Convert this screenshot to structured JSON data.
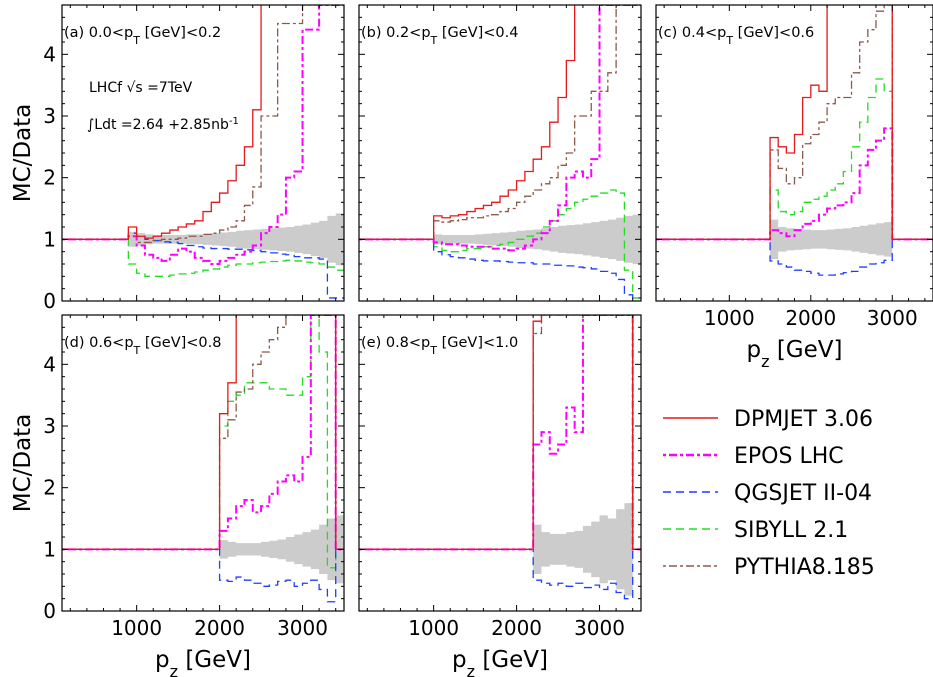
{
  "chart_data": {
    "type": "line",
    "ylabel": "MC/Data",
    "xlabel": "p_z [GeV]",
    "xlim": [
      100,
      3500
    ],
    "ylim": [
      0,
      4.8
    ],
    "yticks": [
      0,
      1,
      2,
      3,
      4
    ],
    "xticks": [
      1000,
      2000,
      3000
    ],
    "annotation": {
      "experiment": "LHCf",
      "energy_text": "√s =7TeV",
      "luminosity_text": "∫Ldt =2.64 +2.85nb",
      "luminosity_sup": "-1"
    },
    "legend": {
      "position": "lower-right",
      "entries": [
        {
          "name": "DPMJET 3.06",
          "color": "#e41a1c",
          "dash": ""
        },
        {
          "name": "EPOS LHC",
          "color": "#ff00ff",
          "dash": "3,3,8,3"
        },
        {
          "name": "QGSJET II-04",
          "color": "#1f3fff",
          "dash": "8,5"
        },
        {
          "name": "SIBYLL 2.1",
          "color": "#22dd22",
          "dash": "8,5"
        },
        {
          "name": "PYTHIA8.185",
          "color": "#8b5a4a",
          "dash": "3,3,8,3"
        }
      ]
    },
    "panels": [
      {
        "label": "(a) 0.0<p_T [GeV]<0.2",
        "pt_range": "0.0-0.2",
        "edges": [
          100,
          900,
          1000,
          1100,
          1200,
          1300,
          1400,
          1500,
          1600,
          1700,
          1800,
          1900,
          2000,
          2100,
          2200,
          2300,
          2400,
          2500,
          2600,
          2700,
          2800,
          2900,
          3000,
          3100,
          3200,
          3300,
          3400,
          3500
        ],
        "uncertainty_band": {
          "low": [
            1,
            0.88,
            0.9,
            0.92,
            0.93,
            0.93,
            0.93,
            0.93,
            0.92,
            0.92,
            0.91,
            0.9,
            0.89,
            0.88,
            0.86,
            0.85,
            0.84,
            0.83,
            0.82,
            0.81,
            0.8,
            0.78,
            0.76,
            0.73,
            0.7,
            0.62,
            0.58
          ],
          "high": [
            1,
            1.12,
            1.1,
            1.08,
            1.07,
            1.07,
            1.07,
            1.07,
            1.08,
            1.08,
            1.09,
            1.1,
            1.11,
            1.12,
            1.14,
            1.15,
            1.16,
            1.17,
            1.18,
            1.19,
            1.2,
            1.22,
            1.24,
            1.27,
            1.3,
            1.38,
            1.42
          ]
        },
        "series": {
          "DPMJET 3.06": [
            1,
            1.2,
            1.05,
            1.02,
            1.05,
            1.1,
            1.15,
            1.2,
            1.25,
            1.3,
            1.45,
            1.6,
            1.75,
            1.95,
            2.2,
            2.5,
            3.1,
            5.2,
            5.2,
            5.2,
            5.2,
            5.2,
            5.2,
            5.2,
            5.2,
            5.2,
            5.2
          ],
          "EPOS LHC": [
            1,
            1.05,
            0.9,
            0.75,
            0.7,
            0.65,
            0.75,
            0.85,
            0.8,
            0.7,
            0.65,
            0.6,
            0.65,
            0.7,
            0.75,
            0.8,
            0.9,
            1.1,
            1.2,
            1.4,
            2.0,
            2.1,
            4.4,
            4.4,
            4.8,
            4.8,
            4.8
          ],
          "QGSJET II-04": [
            1,
            1.1,
            1.05,
            1.0,
            0.98,
            0.96,
            0.95,
            0.93,
            0.9,
            0.88,
            0.86,
            0.85,
            0.85,
            0.84,
            0.84,
            0.83,
            0.82,
            0.8,
            0.78,
            0.76,
            0.75,
            0.72,
            0.7,
            0.7,
            0.68,
            0.05,
            0.05
          ],
          "SIBYLL 2.1": [
            1,
            0.6,
            0.45,
            0.4,
            0.4,
            0.4,
            0.42,
            0.44,
            0.45,
            0.47,
            0.5,
            0.52,
            0.55,
            0.58,
            0.6,
            0.6,
            0.62,
            0.63,
            0.64,
            0.65,
            0.66,
            0.65,
            0.63,
            0.62,
            0.6,
            0.55,
            0.5
          ],
          "PYTHIA8.185": [
            1,
            1.05,
            0.95,
            0.95,
            0.98,
            1.0,
            1.0,
            1.02,
            1.05,
            1.05,
            1.08,
            1.1,
            1.15,
            1.2,
            1.3,
            1.55,
            1.85,
            3.0,
            3.0,
            4.5,
            4.5,
            4.5,
            4.8,
            4.8,
            5.2,
            5.2,
            5.2
          ]
        }
      },
      {
        "label": "(b) 0.2<p_T [GeV]<0.4",
        "pt_range": "0.2-0.4",
        "edges": [
          100,
          1000,
          1100,
          1200,
          1300,
          1400,
          1500,
          1600,
          1700,
          1800,
          1900,
          2000,
          2100,
          2200,
          2300,
          2400,
          2500,
          2600,
          2700,
          2800,
          2900,
          3000,
          3100,
          3200,
          3300,
          3400,
          3500
        ],
        "uncertainty_band": {
          "low": [
            1,
            0.92,
            0.93,
            0.93,
            0.93,
            0.93,
            0.92,
            0.91,
            0.9,
            0.89,
            0.88,
            0.86,
            0.85,
            0.84,
            0.82,
            0.8,
            0.78,
            0.77,
            0.76,
            0.74,
            0.72,
            0.7,
            0.68,
            0.65,
            0.62,
            0.6
          ],
          "high": [
            1,
            1.08,
            1.07,
            1.07,
            1.07,
            1.07,
            1.08,
            1.09,
            1.1,
            1.11,
            1.12,
            1.14,
            1.15,
            1.16,
            1.18,
            1.2,
            1.22,
            1.23,
            1.24,
            1.26,
            1.28,
            1.3,
            1.32,
            1.35,
            1.38,
            1.4
          ]
        },
        "series": {
          "DPMJET 3.06": [
            1,
            1.38,
            1.35,
            1.38,
            1.4,
            1.45,
            1.5,
            1.55,
            1.6,
            1.7,
            1.8,
            1.95,
            2.1,
            2.3,
            2.5,
            2.9,
            3.3,
            3.9,
            5.2,
            5.2,
            5.2,
            5.2,
            5.2,
            5.2,
            5.2,
            5.2
          ],
          "EPOS LHC": [
            1,
            0.95,
            0.92,
            0.92,
            0.9,
            0.88,
            0.88,
            0.88,
            0.85,
            0.85,
            0.82,
            0.85,
            0.9,
            1.0,
            1.1,
            1.3,
            1.55,
            2.0,
            2.1,
            2.0,
            2.3,
            4.8,
            4.8,
            4.8,
            4.8,
            4.8
          ],
          "QGSJET II-04": [
            1,
            0.8,
            0.75,
            0.72,
            0.7,
            0.68,
            0.66,
            0.65,
            0.65,
            0.64,
            0.63,
            0.62,
            0.62,
            0.6,
            0.6,
            0.58,
            0.58,
            0.57,
            0.55,
            0.54,
            0.52,
            0.48,
            0.45,
            0.35,
            0.1,
            0.05
          ],
          "SIBYLL 2.1": [
            1,
            0.88,
            0.82,
            0.8,
            0.82,
            0.85,
            0.85,
            0.88,
            0.9,
            0.92,
            0.95,
            1.0,
            1.05,
            1.1,
            1.2,
            1.3,
            1.4,
            1.5,
            1.6,
            1.65,
            1.7,
            1.75,
            1.8,
            1.75,
            0.5,
            0.05
          ],
          "PYTHIA8.185": [
            1,
            1.3,
            1.28,
            1.3,
            1.32,
            1.35,
            1.35,
            1.38,
            1.4,
            1.45,
            1.5,
            1.6,
            1.7,
            1.8,
            1.9,
            2.0,
            2.2,
            2.4,
            3.0,
            3.0,
            3.4,
            3.4,
            3.7,
            4.8,
            4.8,
            4.8
          ]
        }
      },
      {
        "label": "(c) 0.4<p_T [GeV]<0.6",
        "pt_range": "0.4-0.6",
        "edges": [
          100,
          1500,
          1600,
          1700,
          1800,
          1900,
          2000,
          2100,
          2200,
          2300,
          2400,
          2500,
          2600,
          2700,
          2800,
          2900,
          3000,
          3500
        ],
        "uncertainty_band": {
          "low": [
            1,
            0.68,
            0.8,
            0.82,
            0.83,
            0.84,
            0.85,
            0.85,
            0.84,
            0.83,
            0.82,
            0.8,
            0.78,
            0.76,
            0.74,
            0.72,
            1
          ],
          "high": [
            1,
            1.32,
            1.2,
            1.18,
            1.17,
            1.16,
            1.15,
            1.15,
            1.16,
            1.17,
            1.18,
            1.2,
            1.22,
            1.24,
            1.26,
            1.28,
            1
          ]
        },
        "series": {
          "DPMJET 3.06": [
            1,
            2.65,
            2.5,
            2.4,
            2.7,
            3.3,
            3.5,
            3.4,
            4.9,
            4.9,
            4.9,
            4.9,
            4.9,
            4.9,
            4.9,
            4.9,
            1
          ],
          "EPOS LHC": [
            1,
            1.15,
            1.1,
            1.05,
            1.15,
            1.25,
            1.3,
            1.4,
            1.5,
            1.55,
            1.6,
            1.75,
            2.2,
            2.45,
            2.6,
            2.8,
            1
          ],
          "QGSJET II-04": [
            1,
            0.65,
            0.6,
            0.55,
            0.5,
            0.48,
            0.45,
            0.42,
            0.42,
            0.44,
            0.46,
            0.48,
            0.55,
            0.6,
            0.62,
            0.66,
            1
          ],
          "SIBYLL 2.1": [
            1,
            1.8,
            1.45,
            1.4,
            1.45,
            1.6,
            1.65,
            1.7,
            1.8,
            1.9,
            2.1,
            2.5,
            2.9,
            3.3,
            3.6,
            3.4,
            1
          ],
          "PYTHIA8.185": [
            1,
            2.45,
            2.15,
            1.9,
            2.0,
            2.55,
            2.7,
            2.9,
            3.2,
            3.3,
            3.3,
            3.7,
            4.2,
            4.4,
            4.7,
            4.8,
            1
          ]
        }
      },
      {
        "label": "(d) 0.6<p_T [GeV]<0.8",
        "pt_range": "0.6-0.8",
        "edges": [
          100,
          2000,
          2100,
          2200,
          2300,
          2400,
          2500,
          2600,
          2700,
          2800,
          2900,
          3000,
          3100,
          3200,
          3300,
          3400,
          3500
        ],
        "uncertainty_band": {
          "low": [
            1,
            0.85,
            0.88,
            0.9,
            0.9,
            0.9,
            0.88,
            0.86,
            0.84,
            0.8,
            0.76,
            0.72,
            0.68,
            0.6,
            0.5,
            0.45
          ],
          "high": [
            1,
            1.15,
            1.12,
            1.1,
            1.1,
            1.1,
            1.12,
            1.14,
            1.16,
            1.2,
            1.24,
            1.28,
            1.32,
            1.4,
            1.5,
            1.55
          ]
        },
        "series": {
          "DPMJET 3.06": [
            1,
            3.2,
            3.7,
            5.2,
            5.2,
            5.2,
            5.2,
            5.2,
            5.2,
            5.2,
            5.2,
            5.2,
            5.2,
            5.2,
            5.2,
            1
          ],
          "EPOS LHC": [
            1,
            1.3,
            1.5,
            1.7,
            1.8,
            1.6,
            1.7,
            1.9,
            2.1,
            2.2,
            2.1,
            2.5,
            4.8,
            4.8,
            4.8,
            1
          ],
          "QGSJET II-04": [
            1,
            0.5,
            0.48,
            0.55,
            0.5,
            0.45,
            0.4,
            0.42,
            0.48,
            0.5,
            0.4,
            0.45,
            0.5,
            0.35,
            0.15,
            1
          ],
          "SIBYLL 2.1": [
            1,
            3.0,
            3.4,
            3.5,
            3.7,
            3.7,
            3.7,
            3.6,
            3.6,
            3.5,
            3.5,
            3.8,
            4.8,
            4.2,
            0.7,
            1
          ],
          "PYTHIA8.185": [
            1,
            2.8,
            3.1,
            3.55,
            3.6,
            4.0,
            4.2,
            4.4,
            4.6,
            4.8,
            4.8,
            4.8,
            4.8,
            4.8,
            4.8,
            1
          ]
        }
      },
      {
        "label": "(e) 0.8<p_T [GeV]<1.0",
        "pt_range": "0.8-1.0",
        "edges": [
          100,
          2200,
          2300,
          2400,
          2500,
          2600,
          2700,
          2800,
          2900,
          3000,
          3100,
          3200,
          3300,
          3400,
          3500
        ],
        "uncertainty_band": {
          "low": [
            1,
            0.6,
            0.72,
            0.75,
            0.75,
            0.72,
            0.7,
            0.62,
            0.55,
            0.45,
            0.5,
            0.35,
            0.25,
            1
          ],
          "high": [
            1,
            1.4,
            1.28,
            1.25,
            1.25,
            1.28,
            1.3,
            1.38,
            1.45,
            1.55,
            1.5,
            1.65,
            1.75,
            1
          ]
        },
        "series": {
          "DPMJET 3.06": [
            1,
            4.7,
            5.2,
            5.2,
            5.2,
            5.2,
            5.2,
            5.2,
            5.2,
            5.2,
            5.2,
            5.2,
            5.2,
            1
          ],
          "EPOS LHC": [
            1,
            2.7,
            2.9,
            2.55,
            2.7,
            3.3,
            2.9,
            4.8,
            4.8,
            4.8,
            4.8,
            4.8,
            4.8,
            1
          ],
          "QGSJET II-04": [
            1,
            0.5,
            0.45,
            0.42,
            0.45,
            0.4,
            0.45,
            0.38,
            0.42,
            0.35,
            0.45,
            0.3,
            0.2,
            1
          ],
          "SIBYLL 2.1": [
            1,
            4.7,
            4.8,
            4.8,
            4.8,
            4.8,
            4.8,
            4.8,
            4.8,
            4.8,
            4.8,
            4.8,
            4.8,
            1
          ],
          "PYTHIA8.185": [
            1,
            4.5,
            4.8,
            4.8,
            4.8,
            4.8,
            4.8,
            4.8,
            4.8,
            4.8,
            4.8,
            4.8,
            4.8,
            1
          ]
        }
      }
    ]
  }
}
